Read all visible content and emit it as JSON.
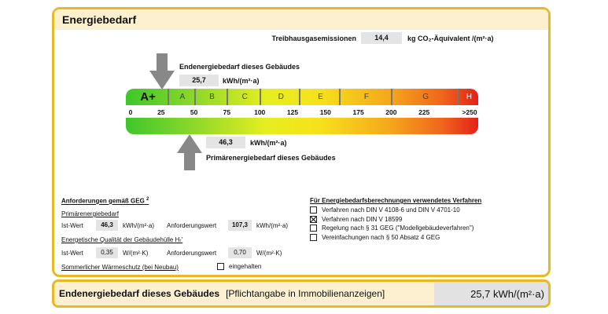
{
  "header": {
    "title": "Energiebedarf"
  },
  "emissions": {
    "label": "Treibhausgasemissionen",
    "value": "14,4",
    "unit": "kg CO₂-Äquivalent /(m²·a)"
  },
  "end_energy": {
    "label": "Endenergiebedarf dieses Gebäudes",
    "value": "25,7",
    "unit": "kWh/(m²·a)",
    "numeric": 25.7
  },
  "primary_energy": {
    "label": "Primärenergiebedarf dieses Gebäudes",
    "value": "46,3",
    "unit": "kWh/(m²·a)",
    "numeric": 46.3
  },
  "scale": {
    "classes": [
      {
        "label": "A+",
        "from": 0,
        "to": 30
      },
      {
        "label": "A",
        "from": 30,
        "to": 50
      },
      {
        "label": "B",
        "from": 50,
        "to": 75
      },
      {
        "label": "C",
        "from": 75,
        "to": 100
      },
      {
        "label": "D",
        "from": 100,
        "to": 130
      },
      {
        "label": "E",
        "from": 130,
        "to": 160
      },
      {
        "label": "F",
        "from": 160,
        "to": 200
      },
      {
        "label": "G",
        "from": 200,
        "to": 250
      },
      {
        "label": "H",
        "from": 250,
        "to": 266
      }
    ],
    "ticks": [
      "0",
      "25",
      "50",
      "75",
      "100",
      "125",
      "150",
      "175",
      "200",
      "225",
      ">250"
    ]
  },
  "requirements": {
    "title": "Anforderungen gemäß GEG",
    "footnote": "2",
    "primary_title": "Primärenergiebedarf",
    "ist_label": "Ist-Wert",
    "primary_ist": "46,3",
    "primary_unit": "kWh/(m²·a)",
    "req_label": "Anforderungswert",
    "primary_req": "107,3",
    "envelope_title": "Energetische Qualität der Gebäudehülle Hₜ'",
    "envelope_ist": "0,35",
    "envelope_unit": "W/(m²·K)",
    "envelope_req": "0,70",
    "summer_label": "Sommerlicher Wärmeschutz (bei Neubau)",
    "summer_check": "eingehalten"
  },
  "methods": {
    "title": "Für Energiebedarfsberechnungen verwendetes Verfahren",
    "items": [
      {
        "label": "Verfahren nach DIN V 4108-6 und DIN V 4701-10",
        "checked": false
      },
      {
        "label": "Verfahren nach DIN V 18599",
        "checked": true
      },
      {
        "label": "Regelung nach § 31 GEG (\"Modellgebäudeverfahren\")",
        "checked": false
      },
      {
        "label": "Vereinfachungen nach § 50 Absatz 4 GEG",
        "checked": false
      }
    ]
  },
  "footer": {
    "label": "Endenergiebedarf dieses Gebäudes",
    "note": "[Pflichtangabe in Immobilienanzeigen]",
    "value": "25,7 kWh/(m²·a)"
  }
}
